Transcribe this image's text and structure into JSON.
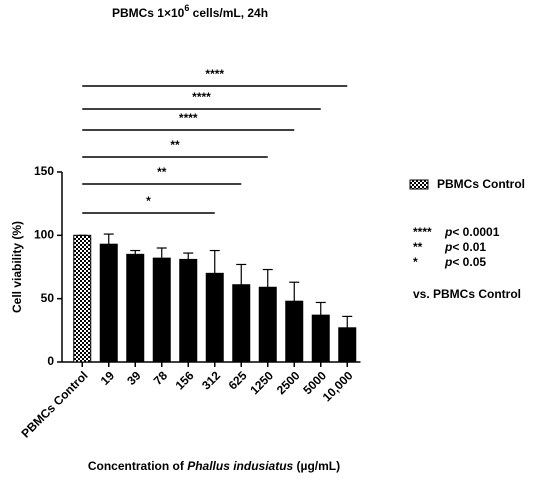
{
  "chart_data": {
    "type": "bar",
    "title": {
      "main": "PBMCs 1×10",
      "sup": "6",
      "rest": "  cells/mL, 24h"
    },
    "y_label": "Cell viability (%)",
    "x_label": {
      "before": "Concentration of ",
      "italic": "Phallus indusiatus",
      "after": " (µg/mL)"
    },
    "categories": [
      "PBMCs Control",
      "19",
      "39",
      "78",
      "156",
      "312",
      "625",
      "1250",
      "2500",
      "5000",
      "10,000"
    ],
    "values": [
      100,
      93,
      85,
      82,
      81,
      70,
      61,
      59,
      48,
      37,
      27
    ],
    "errors": [
      0,
      8,
      3,
      8,
      5,
      18,
      16,
      14,
      15,
      10,
      9
    ],
    "color": "#000000",
    "ylim": [
      0,
      150
    ],
    "yticks": [
      0,
      50,
      100,
      150
    ],
    "comparisons": [
      {
        "from": 0,
        "to": 5,
        "label": "*"
      },
      {
        "from": 0,
        "to": 6,
        "label": "**"
      },
      {
        "from": 0,
        "to": 7,
        "label": "**"
      },
      {
        "from": 0,
        "to": 8,
        "label": "****"
      },
      {
        "from": 0,
        "to": 9,
        "label": "****"
      },
      {
        "from": 0,
        "to": 10,
        "label": "****"
      }
    ],
    "legend": {
      "label": "PBMCs Control"
    },
    "significance_key": [
      {
        "stars": "****",
        "p": "p",
        "threshold": "< 0.0001"
      },
      {
        "stars": "**",
        "p": "p",
        "threshold": "< 0.01"
      },
      {
        "stars": "*",
        "p": "p",
        "threshold": "< 0.05"
      }
    ],
    "key_note": "vs. PBMCs Control"
  }
}
